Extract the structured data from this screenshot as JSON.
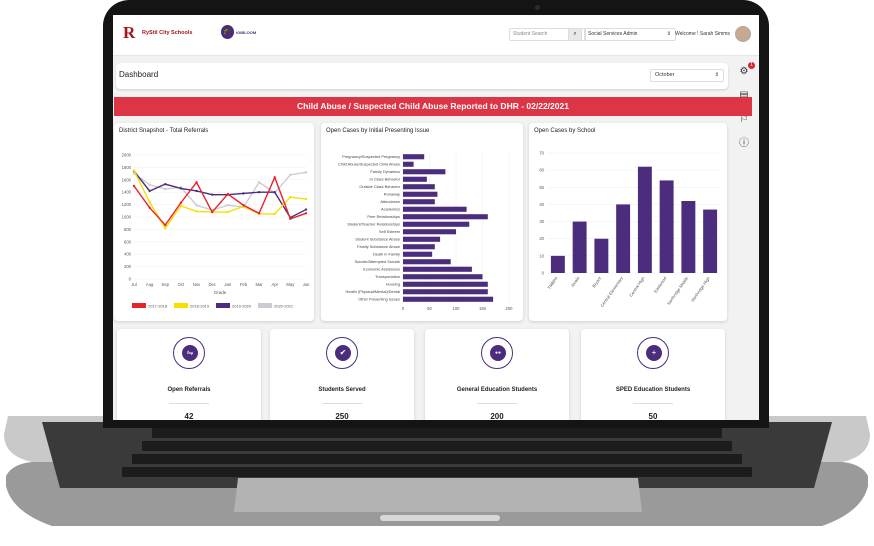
{
  "header": {
    "logo_text": "RyStil City Schools",
    "logo_mark": "R",
    "partner_logo_text": "iGIBLOOM",
    "search_placeholder": "Student Search",
    "role_select": "Social Services Admin",
    "welcome": "Welcome ! Sarah Simms"
  },
  "dashboard": {
    "title": "Dashboard",
    "month": "October",
    "notification_count": "1"
  },
  "alert": "Child Abuse / Suspected Child Abuse Reported to DHR - 02/22/2021",
  "colors": {
    "accent": "#4b2c7d",
    "alert": "#dc3545",
    "s2017": "#e8222a",
    "s2018": "#f5e000",
    "s2019": "#4b2c7d",
    "s2020": "#c9ccd0"
  },
  "cards": {
    "snapshot_title": "District Snapshot - Total Referrals",
    "issue_title": "Open Cases by Initial Presenting Issue",
    "school_title": "Open Cases by School"
  },
  "chart_data": [
    {
      "type": "line",
      "title": "District Snapshot - Total Referrals",
      "xlabel": "Grade",
      "categories": [
        "Jul",
        "Aug",
        "Sep",
        "Oct",
        "Nov",
        "Dec",
        "Jan",
        "Feb",
        "Mar",
        "Apr",
        "May",
        "Jun"
      ],
      "ylim": [
        0,
        2000
      ],
      "yticks": [
        0,
        200,
        400,
        600,
        800,
        1000,
        1200,
        1400,
        1600,
        1800,
        2000
      ],
      "legend": "bottom",
      "series": [
        {
          "name": "2017-2018",
          "values": [
            1500,
            1150,
            870,
            1230,
            1560,
            1080,
            1370,
            1190,
            1060,
            1640,
            970,
            1060
          ]
        },
        {
          "name": "2018-2019",
          "values": [
            1750,
            1240,
            820,
            1180,
            1090,
            1080,
            1080,
            1170,
            1050,
            1050,
            1320,
            1290
          ]
        },
        {
          "name": "2019-2020",
          "values": [
            1740,
            1420,
            1530,
            1460,
            1420,
            1360,
            1360,
            1380,
            1400,
            1400,
            990,
            1120
          ]
        },
        {
          "name": "2020-2021",
          "values": [
            1700,
            1520,
            1450,
            1480,
            1190,
            1110,
            1190,
            1160,
            1560,
            1390,
            1680,
            1720
          ]
        }
      ]
    },
    {
      "type": "bar",
      "orientation": "horizontal",
      "title": "Open Cases by Initial Presenting Issue",
      "xlim": [
        0,
        200
      ],
      "xticks": [
        0,
        50,
        100,
        150,
        200
      ],
      "categories": [
        "Pregnancy/Suspected Pregnancy",
        "Child Abuse/Suspected Child Abuse",
        "Family Dynamics",
        "In Class Behavior",
        "Outside Class Behavior",
        "Runaway",
        "Attendance",
        "Academics",
        "Peer Relationships",
        "Student/Teacher Relationships",
        "Self Esteem",
        "Student Substance Abuse",
        "Family Substance Abuse",
        "Death in Family",
        "Suicide/Attempted Suicide",
        "Economic Assistance",
        "Transportation",
        "Housing",
        "Health (Physical/Mental)/Dental",
        "Other Presenting Issues"
      ],
      "values": [
        40,
        20,
        80,
        45,
        60,
        65,
        60,
        120,
        160,
        125,
        100,
        70,
        60,
        55,
        90,
        130,
        150,
        160,
        160,
        170
      ]
    },
    {
      "type": "bar",
      "title": "Open Cases by School",
      "ylim": [
        0,
        70
      ],
      "yticks": [
        0,
        10,
        20,
        30,
        40,
        50,
        60,
        70
      ],
      "categories": [
        "TMBPA",
        "Alcala",
        "Bryant",
        "Central Elementary",
        "Central High",
        "Eastwood",
        "Northridge Middle",
        "Northridge High"
      ],
      "values": [
        10,
        30,
        20,
        40,
        62,
        54,
        42,
        37
      ]
    }
  ],
  "stats": [
    {
      "label": "Open Referrals",
      "value": "42",
      "icon": "handshake-icon",
      "glyph": "⇋"
    },
    {
      "label": "Students Served",
      "value": "250",
      "icon": "user-check-icon",
      "glyph": "✔"
    },
    {
      "label": "General Education Students",
      "value": "200",
      "icon": "users-icon",
      "glyph": "●●"
    },
    {
      "label": "SPED Education Students",
      "value": "50",
      "icon": "user-plus-icon",
      "glyph": "+"
    }
  ]
}
